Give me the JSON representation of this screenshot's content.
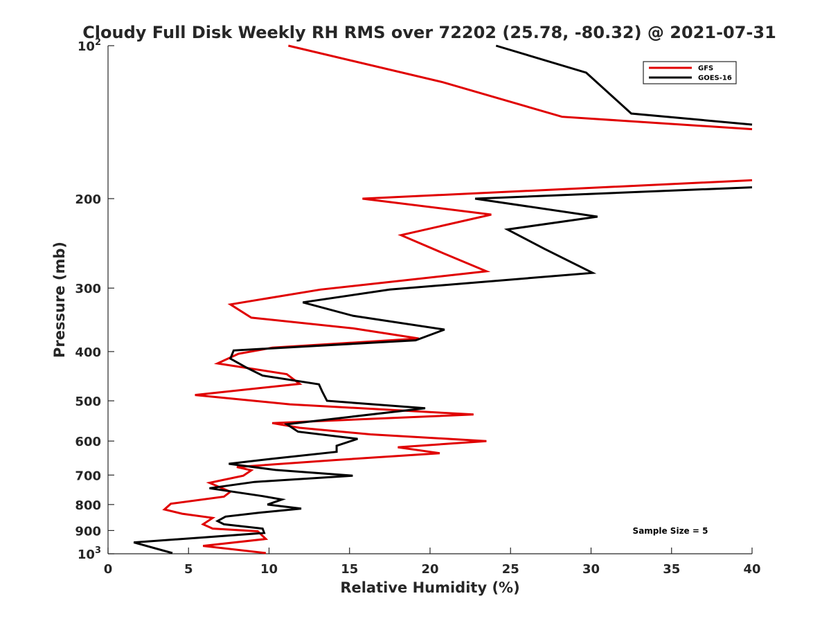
{
  "chart_data": {
    "type": "line",
    "title": "Cloudy Full Disk Weekly RH RMS over 72202 (25.78, -80.32) @ 2021-07-31",
    "xlabel": "Relative Humidity (%)",
    "ylabel": "Pressure (mb)",
    "xlim": [
      0,
      40
    ],
    "ylim": [
      100,
      1000
    ],
    "y_scale": "log",
    "y_reversed": true,
    "grid": false,
    "legend_placement": "top-right",
    "annotation": "Sample Size = 5",
    "x_ticks": [
      "0",
      "5",
      "10",
      "15",
      "20",
      "25",
      "30",
      "35",
      "40"
    ],
    "y_ticks": [
      {
        "value": 100,
        "base": "10",
        "exp": "2"
      },
      {
        "value": 200,
        "base": "200",
        "exp": ""
      },
      {
        "value": 300,
        "base": "300",
        "exp": ""
      },
      {
        "value": 400,
        "base": "400",
        "exp": ""
      },
      {
        "value": 500,
        "base": "500",
        "exp": ""
      },
      {
        "value": 600,
        "base": "600",
        "exp": ""
      },
      {
        "value": 700,
        "base": "700",
        "exp": ""
      },
      {
        "value": 800,
        "base": "800",
        "exp": ""
      },
      {
        "value": 900,
        "base": "900",
        "exp": ""
      },
      {
        "value": 1000,
        "base": "10",
        "exp": "3"
      }
    ],
    "series": [
      {
        "name": "GFS",
        "color": "#e00000",
        "segments": [
          [
            [
              11.2,
              100
            ],
            [
              20.8,
              118
            ],
            [
              28.2,
              138
            ],
            [
              40,
              146
            ]
          ],
          [
            [
              40,
              184
            ],
            [
              15.8,
              200
            ],
            [
              23.8,
              215
            ],
            [
              18.2,
              236
            ],
            [
              20.8,
              256
            ],
            [
              23.5,
              278
            ],
            [
              13.2,
              302
            ],
            [
              7.6,
              323
            ],
            [
              8.9,
              343
            ],
            [
              15.2,
              360
            ],
            [
              19.3,
              377
            ],
            [
              10.2,
              393
            ],
            [
              8.1,
              404
            ],
            [
              6.8,
              422
            ],
            [
              11.1,
              443
            ],
            [
              11.9,
              463
            ],
            [
              5.4,
              487
            ],
            [
              11.3,
              508
            ],
            [
              22.7,
              532
            ],
            [
              10.2,
              553
            ],
            [
              11.9,
              565
            ],
            [
              16.3,
              582
            ],
            [
              23.5,
              600
            ],
            [
              18.0,
              617
            ],
            [
              20.6,
              634
            ],
            [
              14.1,
              654
            ],
            [
              8.0,
              675
            ],
            [
              8.9,
              685
            ],
            [
              8.4,
              702
            ],
            [
              6.3,
              725
            ],
            [
              7.6,
              755
            ],
            [
              7.2,
              772
            ],
            [
              3.9,
              797
            ],
            [
              3.5,
              818
            ],
            [
              4.6,
              834
            ],
            [
              6.5,
              850
            ],
            [
              5.9,
              875
            ],
            [
              6.5,
              892
            ],
            [
              9.3,
              903
            ],
            [
              9.8,
              935
            ],
            [
              5.9,
              965
            ],
            [
              9.8,
              997
            ]
          ]
        ]
      },
      {
        "name": "GOES-16",
        "color": "#000000",
        "segments": [
          [
            [
              24.1,
              100
            ],
            [
              29.7,
              113
            ],
            [
              32.5,
              136
            ],
            [
              40,
              143
            ]
          ],
          [
            [
              40,
              190
            ],
            [
              22.8,
              200
            ],
            [
              30.4,
              217
            ],
            [
              24.8,
              230
            ],
            [
              27.1,
              251
            ],
            [
              30.1,
              280
            ],
            [
              17.5,
              302
            ],
            [
              12.1,
              320
            ],
            [
              15.2,
              340
            ],
            [
              20.9,
              362
            ],
            [
              19.1,
              380
            ],
            [
              7.8,
              398
            ],
            [
              7.6,
              413
            ],
            [
              8.6,
              430
            ],
            [
              9.6,
              446
            ],
            [
              13.1,
              464
            ],
            [
              13.3,
              479
            ],
            [
              13.6,
              500
            ],
            [
              19.7,
              517
            ],
            [
              14.3,
              541
            ],
            [
              11.1,
              556
            ],
            [
              11.8,
              575
            ],
            [
              15.5,
              594
            ],
            [
              14.2,
              613
            ],
            [
              14.2,
              630
            ],
            [
              10.2,
              650
            ],
            [
              7.5,
              665
            ],
            [
              10.4,
              684
            ],
            [
              15.2,
              702
            ],
            [
              9.1,
              722
            ],
            [
              6.3,
              743
            ],
            [
              9.6,
              770
            ],
            [
              10.8,
              782
            ],
            [
              9.9,
              800
            ],
            [
              12.0,
              815
            ],
            [
              9.4,
              830
            ],
            [
              7.3,
              845
            ],
            [
              6.8,
              862
            ],
            [
              7.2,
              875
            ],
            [
              9.6,
              892
            ],
            [
              9.7,
              910
            ],
            [
              6.0,
              928
            ],
            [
              1.6,
              950
            ],
            [
              4.0,
              997
            ]
          ]
        ]
      }
    ]
  }
}
